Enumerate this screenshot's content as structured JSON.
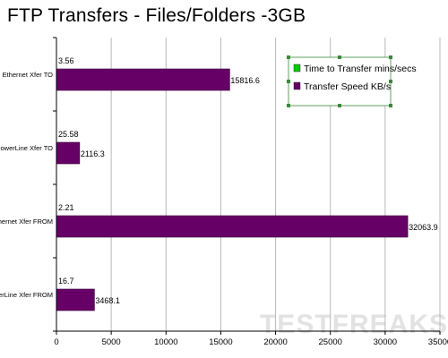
{
  "chart_data": {
    "type": "bar",
    "orientation": "horizontal",
    "title": "FTP Transfers - Files/Folders -3GB",
    "categories": [
      "Ethernet Xfer TO",
      "PowerLine Xfer TO",
      "Ethernet Xfer FROM",
      "PowerLine Xfer FROM"
    ],
    "series": [
      {
        "name": "Time to Transfer mins/secs",
        "values": [
          3.56,
          25.58,
          2.21,
          16.7
        ],
        "color": "#00cc00"
      },
      {
        "name": "Transfer Speed KB/s",
        "values": [
          15816.6,
          2116.3,
          32063.9,
          3468.1
        ],
        "color": "#660066"
      }
    ],
    "data_labels": [
      [
        "3.56",
        "25.58",
        "2.21",
        "16.7"
      ],
      [
        "15816.6",
        "2116.3",
        "32063.9",
        "3468.1"
      ]
    ],
    "xlim": [
      0,
      35000
    ],
    "xticks": [
      0,
      5000,
      10000,
      15000,
      20000,
      25000,
      30000,
      35000
    ],
    "grid": true,
    "legend_position": "top-right",
    "watermark": "TESTFREAKS"
  }
}
